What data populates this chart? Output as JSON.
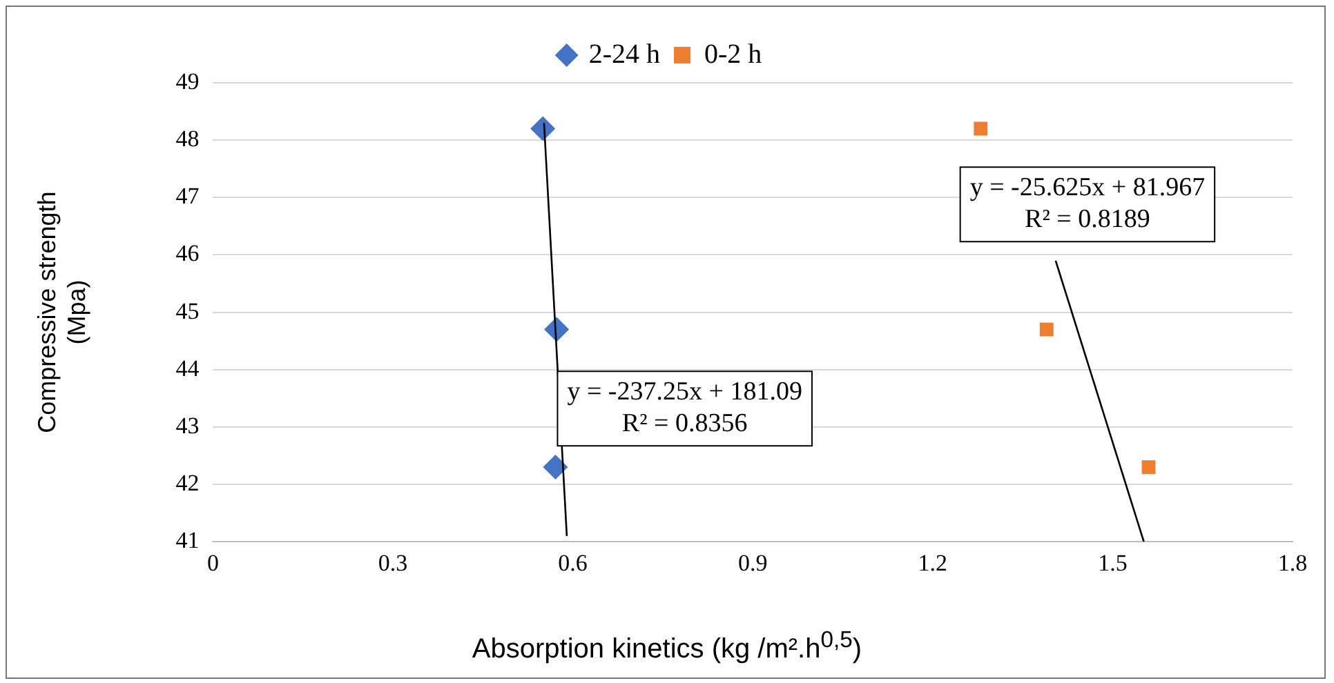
{
  "chart_data": {
    "type": "scatter",
    "xlabel": "Absorption kinetics (kg /m².h$^{0,5}$)",
    "ylabel": "Compressive strength\n(Mpa)",
    "xlim": [
      0,
      1.8
    ],
    "xticks": [
      0,
      0.3,
      0.6,
      0.9,
      1.2,
      1.5,
      1.8
    ],
    "ylim": [
      41,
      49
    ],
    "yticks": [
      41,
      42,
      43,
      44,
      45,
      46,
      47,
      48,
      49
    ],
    "grid": "y",
    "legend": "top",
    "series": [
      {
        "name": "2-24 h",
        "color": "#4472c4",
        "marker": "diamond",
        "x": [
          0.55,
          0.573,
          0.571
        ],
        "values": [
          48.2,
          44.7,
          42.3
        ]
      },
      {
        "name": "0-2 h",
        "color": "#ed7d31",
        "marker": "square",
        "x": [
          1.28,
          1.39,
          1.56
        ],
        "values": [
          48.2,
          44.7,
          42.3
        ]
      },
      {
        "type": "line",
        "color": "#000000",
        "marker": "none",
        "x": [
          0.552,
          0.59
        ],
        "values": [
          48.3,
          41.1
        ]
      },
      {
        "type": "line",
        "color": "#000000",
        "marker": "none",
        "x": [
          1.405,
          1.552
        ],
        "values": [
          45.9,
          41.0
        ]
      }
    ],
    "annotations": [
      "y = -237.25x + 181.09\nR² = 0.8356",
      "y = -25.625x + 81.967\nR² = 0.8189"
    ]
  }
}
